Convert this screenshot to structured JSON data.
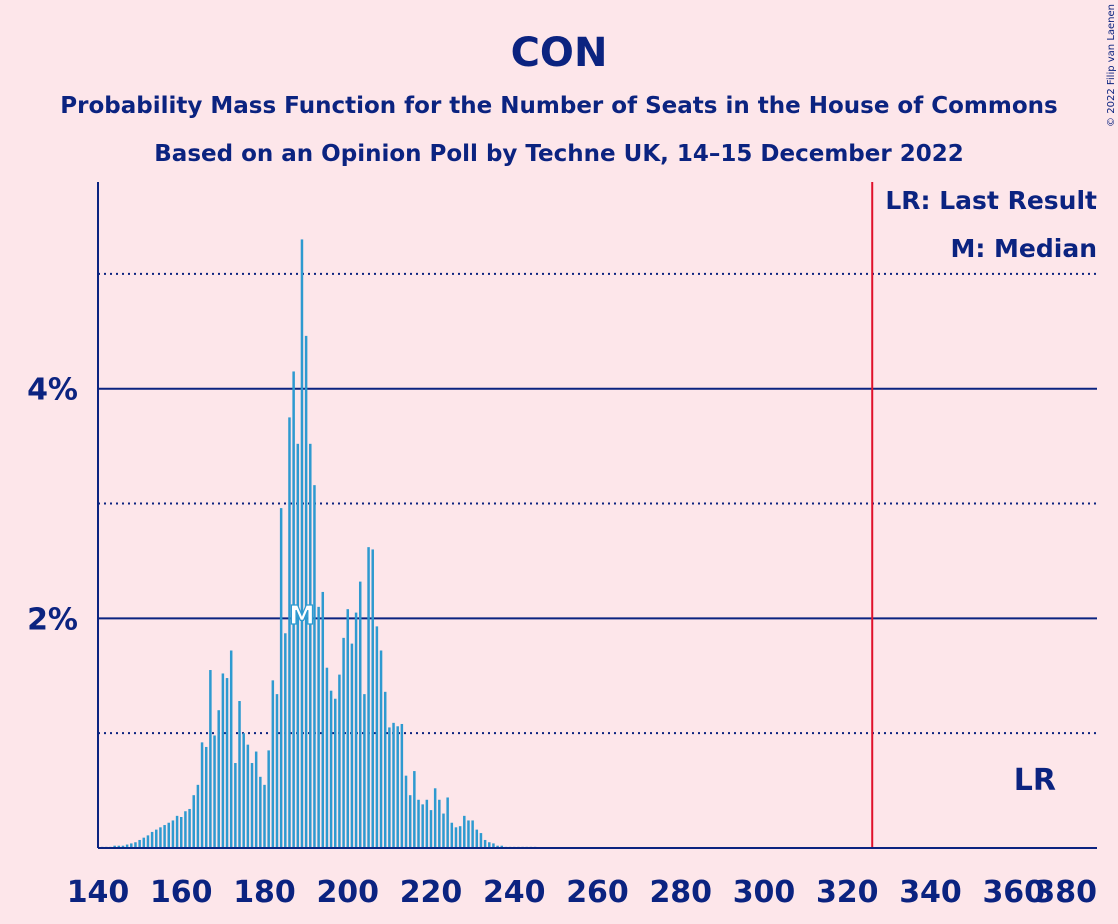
{
  "chart_data": {
    "type": "bar",
    "title": "CON",
    "subtitle": "Probability Mass Function for the Number of Seats in the House of Commons",
    "subtitle2": "Based on an Opinion Poll by Techne UK, 14–15 December 2022",
    "credit": "© 2022 Filip van Laenen",
    "xlim": [
      140,
      380
    ],
    "ylim": [
      0,
      5.8
    ],
    "x_ticks": [
      "140",
      "160",
      "180",
      "200",
      "220",
      "240",
      "260",
      "280",
      "300",
      "320",
      "340",
      "360",
      "380"
    ],
    "y_ticks_labeled": [
      {
        "value": 2,
        "label": "2%"
      },
      {
        "value": 4,
        "label": "4%"
      }
    ],
    "y_gridlines_dotted": [
      1,
      3,
      5
    ],
    "last_result": 326,
    "median": 189,
    "legend": {
      "lr": "LR: Last Result",
      "m": "M: Median"
    },
    "lr_label": "LR",
    "m_label": "M",
    "colors": {
      "bar": "#2E9AD0",
      "axis": "#0B2380",
      "lr_line": "#E0102A",
      "background": "#FDE6EA"
    },
    "x": [
      141,
      142,
      143,
      144,
      145,
      146,
      147,
      148,
      149,
      150,
      151,
      152,
      153,
      154,
      155,
      156,
      157,
      158,
      159,
      160,
      161,
      162,
      163,
      164,
      165,
      166,
      167,
      168,
      169,
      170,
      171,
      172,
      173,
      174,
      175,
      176,
      177,
      178,
      179,
      180,
      181,
      182,
      183,
      184,
      185,
      186,
      187,
      188,
      189,
      190,
      191,
      192,
      193,
      194,
      195,
      196,
      197,
      198,
      199,
      200,
      201,
      202,
      203,
      204,
      205,
      206,
      207,
      208,
      209,
      210,
      211,
      212,
      213,
      214,
      215,
      216,
      217,
      218,
      219,
      220,
      221,
      222,
      223,
      224,
      225,
      226,
      227,
      228,
      229,
      230,
      231,
      232,
      233,
      234,
      235,
      236,
      237,
      238,
      239,
      240,
      241,
      242,
      243,
      244,
      245
    ],
    "values": [
      0.01,
      0.01,
      0.01,
      0.02,
      0.02,
      0.02,
      0.03,
      0.04,
      0.05,
      0.07,
      0.09,
      0.11,
      0.14,
      0.16,
      0.18,
      0.2,
      0.22,
      0.24,
      0.28,
      0.27,
      0.32,
      0.34,
      0.46,
      0.55,
      0.92,
      0.88,
      1.55,
      0.98,
      1.2,
      1.52,
      1.48,
      1.72,
      0.74,
      1.28,
      1.0,
      0.9,
      0.74,
      0.84,
      0.62,
      0.55,
      0.85,
      1.46,
      1.34,
      2.96,
      1.87,
      3.75,
      4.15,
      3.52,
      5.3,
      4.46,
      3.52,
      3.16,
      2.1,
      2.23,
      1.57,
      1.37,
      1.3,
      1.51,
      1.83,
      2.08,
      1.78,
      2.05,
      2.32,
      1.34,
      2.62,
      2.6,
      1.93,
      1.72,
      1.36,
      1.05,
      1.09,
      1.06,
      1.08,
      0.63,
      0.46,
      0.67,
      0.42,
      0.38,
      0.42,
      0.33,
      0.52,
      0.42,
      0.3,
      0.44,
      0.22,
      0.18,
      0.19,
      0.28,
      0.24,
      0.24,
      0.16,
      0.13,
      0.07,
      0.05,
      0.04,
      0.02,
      0.02,
      0.01,
      0.01,
      0.01,
      0.01,
      0.01,
      0.01,
      0.01,
      0.01
    ]
  }
}
